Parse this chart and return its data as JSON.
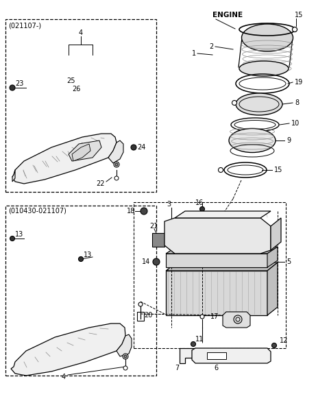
{
  "bg_color": "#ffffff",
  "box1_label": "(021107-)",
  "box2_label": "(010430-021107)",
  "engine_label": "ENGINE"
}
